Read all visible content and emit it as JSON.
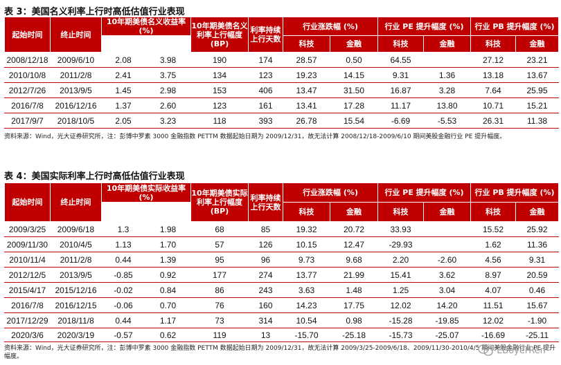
{
  "table3": {
    "caption": "表 3：美国名义利率上行时高低估值行业表现",
    "headers": {
      "start": "起始时间",
      "end": "终止时间",
      "yield_change": "10年期美债名义收益率(%)",
      "yield_rise": "10年期美债名义利率上行幅度(BP)",
      "days": "利率持续上行天数",
      "industry_change": "行业涨跌幅 (%)",
      "pe_rise": "行业 PE 提升幅度 (%)",
      "pb_rise": "行业 PB 提升幅度 (%)",
      "tech": "科技",
      "finance": "金融"
    },
    "rows": [
      [
        "2008/12/18",
        "2009/6/10",
        "2.08",
        "3.98",
        "190",
        "174",
        "28.57",
        "0.50",
        "64.55",
        "",
        "27.12",
        "23.21"
      ],
      [
        "2010/10/8",
        "2011/2/8",
        "2.41",
        "3.75",
        "134",
        "123",
        "19.23",
        "14.15",
        "9.31",
        "1.36",
        "13.18",
        "13.67"
      ],
      [
        "2012/7/26",
        "2013/9/5",
        "1.45",
        "2.98",
        "153",
        "406",
        "13.47",
        "31.50",
        "16.87",
        "3.28",
        "7.64",
        "25.95"
      ],
      [
        "2016/7/8",
        "2016/12/16",
        "1.37",
        "2.60",
        "123",
        "161",
        "13.41",
        "17.28",
        "11.17",
        "13.80",
        "10.71",
        "15.21"
      ],
      [
        "2017/9/7",
        "2018/10/5",
        "2.05",
        "3.23",
        "118",
        "393",
        "26.78",
        "15.54",
        "-6.69",
        "-5.53",
        "26.31",
        "11.38"
      ]
    ],
    "note": "资料来源：Wind，光大证券研究所，注：彭博中罗素 3000 金融指数 PETTM 数据起始日期为 2009/12/31，故无法计算 2008/12/18-2009/6/10 期间美股金融行业 PE 提升幅度。"
  },
  "table4": {
    "caption": "表 4：美国实际利率上行时高低估值行业表现",
    "headers": {
      "start": "起始时间",
      "end": "终止时间",
      "yield_change": "10年期美债实际收益率(%)",
      "yield_rise": "10年期美债实际利率上行幅度(BP)",
      "days": "利率持续上行天数",
      "industry_change": "行业涨跌幅 (%)",
      "pe_rise": "行业 PE 提升幅度 (%)",
      "pb_rise": "行业 PB 提升幅度 (%)",
      "tech": "科技",
      "finance": "金融"
    },
    "rows": [
      [
        "2009/3/25",
        "2009/6/18",
        "1.3",
        "1.98",
        "68",
        "85",
        "19.32",
        "20.72",
        "33.93",
        "",
        "15.52",
        "25.92"
      ],
      [
        "2009/11/30",
        "2010/4/5",
        "1.13",
        "1.70",
        "57",
        "126",
        "10.15",
        "12.47",
        "-29.93",
        "",
        "1.62",
        "11.36"
      ],
      [
        "2010/11/4",
        "2011/2/8",
        "0.44",
        "1.39",
        "95",
        "96",
        "9.73",
        "9.68",
        "2.20",
        "-2.60",
        "4.56",
        "9.31"
      ],
      [
        "2012/12/5",
        "2013/9/5",
        "-0.85",
        "0.92",
        "177",
        "274",
        "13.77",
        "21.99",
        "15.41",
        "3.62",
        "8.97",
        "20.59"
      ],
      [
        "2015/4/17",
        "2015/12/16",
        "-0.02",
        "0.84",
        "86",
        "243",
        "3.63",
        "1.48",
        "1.25",
        "3.04",
        "4.07",
        "0.46"
      ],
      [
        "2016/7/8",
        "2016/12/15",
        "-0.06",
        "0.70",
        "76",
        "160",
        "14.23",
        "17.75",
        "12.02",
        "14.20",
        "11.51",
        "15.67"
      ],
      [
        "2017/12/29",
        "2018/11/8",
        "0.44",
        "1.17",
        "73",
        "314",
        "10.54",
        "0.98",
        "-15.28",
        "-19.85",
        "12.02",
        "-1.90"
      ],
      [
        "2020/3/6",
        "2020/3/19",
        "-0.57",
        "0.62",
        "119",
        "13",
        "-15.70",
        "-25.18",
        "-15.73",
        "-25.07",
        "-16.69",
        "-25.11"
      ]
    ],
    "note": "资料来源：Wind，光大证券研究所，注：彭博中罗素 3000 金融指数 PETTM 数据起始日期为 2009/12/31，故无法计算 2009/3/25-2009/6/18、2009/11/30-2010/4/5 期间美股金融行业 PE 提升幅度。"
  },
  "watermark": {
    "text": "EBoyerRen"
  },
  "colors": {
    "header_bg": "#c00000",
    "header_text": "#ffffff",
    "rule": "#c00000"
  }
}
